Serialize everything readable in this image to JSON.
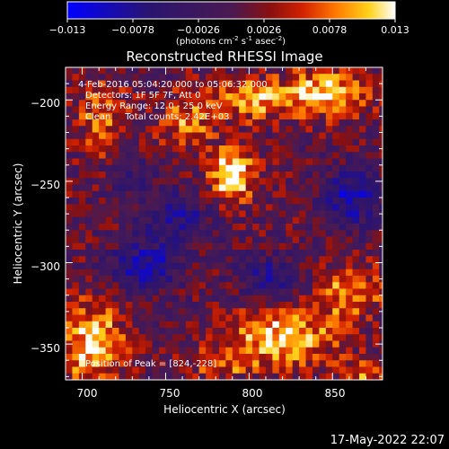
{
  "chart_data": {
    "type": "heatmap",
    "title": "Reconstructed RHESSI Image",
    "xlabel": "Heliocentric X (arcsec)",
    "ylabel": "Heliocentric Y (arcsec)",
    "xlim": [
      690,
      880
    ],
    "ylim": [
      -372,
      -180
    ],
    "x_ticks": [
      700,
      750,
      800,
      850
    ],
    "y_ticks": [
      -200,
      -250,
      -300,
      -350
    ],
    "x_tick_labels": [
      "700",
      "750",
      "800",
      "850"
    ],
    "y_tick_labels": [
      "−200",
      "−250",
      "−300",
      "−350"
    ],
    "colorbar": {
      "min": -0.013,
      "max": 0.013,
      "tick_labels": [
        "−0.013",
        "−0.0078",
        "−0.0026",
        "0.0026",
        "0.0078",
        "0.013"
      ],
      "unit_label": "(photons cm",
      "unit_label_exponent_1": "-2",
      "unit_label_mid": " s",
      "unit_label_exponent_2": "-1",
      "unit_label_end": " asec",
      "unit_label_exponent_3": "-2",
      "unit_label_close": ")"
    },
    "annotations": [
      "4-Feb-2016 05:04:20.000 to 05:06:32.000",
      "Detectors: 1F 5F 7F, Att 0",
      "Energy Range: 12.0 - 25.0 keV",
      "Clean     Total counts: 2.42E+03"
    ],
    "peak_label": "Position of Peak = [824,-228]",
    "peak": [
      824,
      -228
    ],
    "timestamp": "17-May-2022 22:07",
    "sources": [
      {
        "x": 790,
        "y": -246,
        "sx": 9,
        "sy": 11,
        "amp": 0.014
      },
      {
        "x": 800,
        "y": -200,
        "sx": 14,
        "sy": 9,
        "amp": 0.009
      },
      {
        "x": 845,
        "y": -196,
        "sx": 18,
        "sy": 10,
        "amp": 0.011
      },
      {
        "x": 762,
        "y": -213,
        "sx": 12,
        "sy": 12,
        "amp": 0.0075
      },
      {
        "x": 712,
        "y": -212,
        "sx": 11,
        "sy": 16,
        "amp": 0.0065
      },
      {
        "x": 758,
        "y": -272,
        "sx": 13,
        "sy": 11,
        "amp": -0.008
      },
      {
        "x": 738,
        "y": -302,
        "sx": 16,
        "sy": 11,
        "amp": -0.0085
      },
      {
        "x": 812,
        "y": -308,
        "sx": 14,
        "sy": 10,
        "amp": -0.0065
      },
      {
        "x": 862,
        "y": -260,
        "sx": 12,
        "sy": 13,
        "amp": -0.01
      },
      {
        "x": 730,
        "y": -250,
        "sx": 10,
        "sy": 12,
        "amp": -0.0045
      },
      {
        "x": 706,
        "y": -350,
        "sx": 14,
        "sy": 18,
        "amp": 0.011
      },
      {
        "x": 820,
        "y": -346,
        "sx": 22,
        "sy": 12,
        "amp": 0.011
      },
      {
        "x": 860,
        "y": -318,
        "sx": 14,
        "sy": 12,
        "amp": 0.0085
      },
      {
        "x": 783,
        "y": -362,
        "sx": 14,
        "sy": 8,
        "amp": 0.006
      },
      {
        "x": 870,
        "y": -372,
        "sx": 12,
        "sy": 10,
        "amp": 0.007
      }
    ]
  }
}
